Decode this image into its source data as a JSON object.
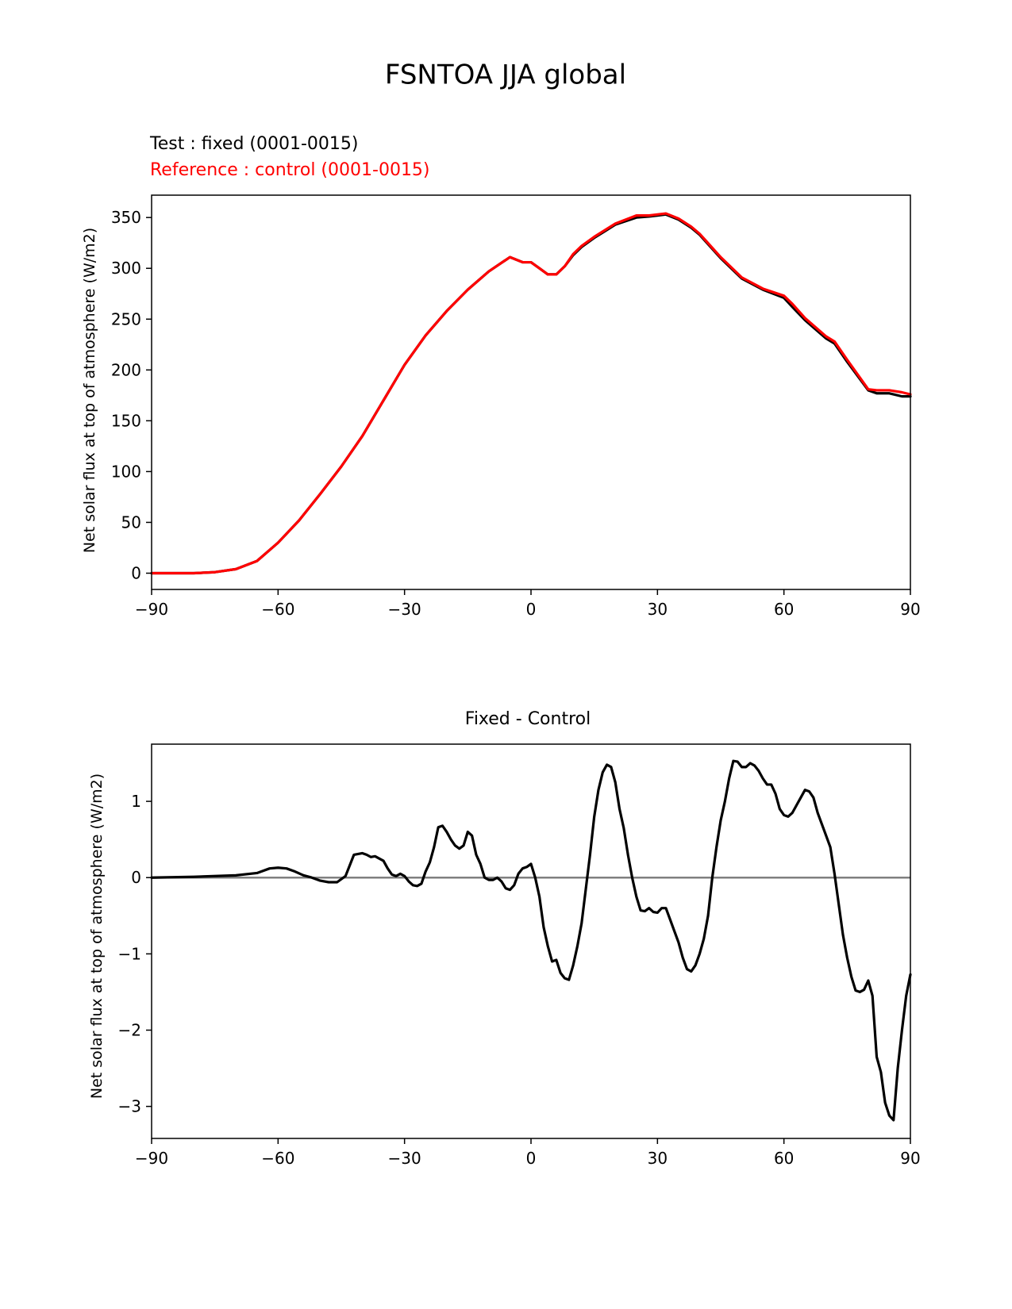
{
  "figure_title": "FSNTOA JJA global",
  "chart_data": [
    {
      "type": "line",
      "test_label": "Test : fixed (0001-0015)",
      "reference_label": "Reference : control (0001-0015)",
      "xlabel": "",
      "ylabel": "Net solar flux at top of atmosphere (W/m2)",
      "xlim": [
        -90,
        90
      ],
      "ylim": [
        -16,
        372
      ],
      "xticks": [
        -90,
        -60,
        -30,
        0,
        30,
        60,
        90
      ],
      "xtick_labels": [
        "−90",
        "−60",
        "−30",
        "0",
        "30",
        "60",
        "90"
      ],
      "yticks": [
        0,
        50,
        100,
        150,
        200,
        250,
        300,
        350
      ],
      "ytick_labels": [
        "0",
        "50",
        "100",
        "150",
        "200",
        "250",
        "300",
        "350"
      ],
      "colors": {
        "test": "#000000",
        "reference": "#ff0000"
      },
      "series": [
        {
          "name": "test",
          "x": [
            -90,
            -80,
            -75,
            -70,
            -65,
            -60,
            -55,
            -50,
            -45,
            -40,
            -35,
            -30,
            -25,
            -20,
            -15,
            -10,
            -5,
            -2,
            0,
            2,
            4,
            6,
            8,
            10,
            12,
            15,
            20,
            25,
            28,
            30,
            32,
            35,
            38,
            40,
            45,
            50,
            55,
            60,
            62,
            65,
            70,
            72,
            75,
            80,
            82,
            85,
            88,
            90
          ],
          "y": [
            0,
            0,
            1,
            4,
            12,
            30,
            52,
            78,
            105,
            135,
            170,
            205,
            234,
            258,
            279,
            297,
            311,
            306,
            306,
            300,
            294,
            294,
            302,
            313,
            321,
            330,
            343,
            350,
            351,
            352,
            353,
            348,
            340,
            333,
            310,
            290,
            279,
            271,
            262,
            249,
            231,
            226,
            208,
            180,
            177,
            177,
            174,
            174
          ]
        },
        {
          "name": "reference",
          "x": [
            -90,
            -80,
            -75,
            -70,
            -65,
            -60,
            -55,
            -50,
            -45,
            -40,
            -35,
            -30,
            -25,
            -20,
            -15,
            -10,
            -5,
            -2,
            0,
            2,
            4,
            6,
            8,
            10,
            12,
            15,
            20,
            25,
            28,
            30,
            32,
            35,
            38,
            40,
            45,
            50,
            55,
            60,
            62,
            65,
            70,
            72,
            75,
            80,
            82,
            85,
            88,
            90
          ],
          "y": [
            0,
            0,
            1,
            4,
            12,
            30,
            52,
            78,
            105,
            135,
            170,
            205,
            234,
            258,
            279,
            297,
            311,
            306,
            306,
            300,
            294,
            294,
            302,
            314,
            322,
            331,
            344,
            352,
            352,
            353,
            354,
            349,
            341,
            334,
            311,
            291,
            280,
            273,
            265,
            251,
            233,
            228,
            210,
            181,
            180,
            180,
            178,
            176
          ]
        }
      ]
    },
    {
      "type": "line",
      "title": "Fixed - Control",
      "xlabel": "",
      "ylabel": "Net solar flux at top of atmosphere (W/m2)",
      "xlim": [
        -90,
        90
      ],
      "ylim": [
        -3.42,
        1.75
      ],
      "xticks": [
        -90,
        -60,
        -30,
        0,
        30,
        60,
        90
      ],
      "xtick_labels": [
        "−90",
        "−60",
        "−30",
        "0",
        "30",
        "60",
        "90"
      ],
      "yticks": [
        -3,
        -2,
        -1,
        0,
        1
      ],
      "ytick_labels": [
        "−3",
        "−2",
        "−1",
        "0",
        "1"
      ],
      "zero_line": 0,
      "colors": {
        "difference": "#000000",
        "zero_line": "#808080"
      },
      "series": [
        {
          "name": "difference",
          "x": [
            -90,
            -80,
            -70,
            -65,
            -62,
            -60,
            -58,
            -56,
            -54,
            -52,
            -50,
            -48,
            -46,
            -44,
            -42,
            -40,
            -39,
            -38,
            -37,
            -36,
            -35,
            -34,
            -33,
            -32,
            -31,
            -30,
            -29,
            -28,
            -27,
            -26,
            -25,
            -24,
            -23,
            -22,
            -21,
            -20,
            -19,
            -18,
            -17,
            -16,
            -15,
            -14,
            -13,
            -12,
            -11,
            -10,
            -9,
            -8,
            -7,
            -6,
            -5,
            -4,
            -3,
            -2,
            -1,
            0,
            1,
            2,
            3,
            4,
            5,
            6,
            7,
            8,
            9,
            10,
            11,
            12,
            13,
            14,
            15,
            16,
            17,
            18,
            19,
            20,
            21,
            22,
            23,
            24,
            25,
            26,
            27,
            28,
            29,
            30,
            31,
            32,
            33,
            34,
            35,
            36,
            37,
            38,
            39,
            40,
            41,
            42,
            43,
            44,
            45,
            46,
            47,
            48,
            49,
            50,
            51,
            52,
            53,
            54,
            55,
            56,
            57,
            58,
            59,
            60,
            61,
            62,
            63,
            64,
            65,
            66,
            67,
            68,
            69,
            70,
            71,
            72,
            73,
            74,
            75,
            76,
            77,
            78,
            79,
            80,
            81,
            82,
            83,
            84,
            85,
            86,
            87,
            88,
            89,
            90
          ],
          "y": [
            0,
            0.01,
            0.03,
            0.06,
            0.12,
            0.13,
            0.12,
            0.08,
            0.03,
            0.0,
            -0.04,
            -0.06,
            -0.06,
            0.02,
            0.3,
            0.32,
            0.3,
            0.27,
            0.28,
            0.25,
            0.22,
            0.12,
            0.04,
            0.02,
            0.05,
            0.02,
            -0.05,
            -0.1,
            -0.11,
            -0.08,
            0.08,
            0.2,
            0.4,
            0.66,
            0.68,
            0.6,
            0.5,
            0.42,
            0.38,
            0.42,
            0.6,
            0.55,
            0.3,
            0.18,
            0.0,
            -0.03,
            -0.03,
            0.0,
            -0.05,
            -0.14,
            -0.16,
            -0.1,
            0.05,
            0.12,
            0.14,
            0.18,
            0.0,
            -0.25,
            -0.65,
            -0.9,
            -1.1,
            -1.08,
            -1.25,
            -1.32,
            -1.34,
            -1.15,
            -0.9,
            -0.6,
            -0.15,
            0.3,
            0.8,
            1.15,
            1.38,
            1.48,
            1.45,
            1.25,
            0.9,
            0.65,
            0.3,
            0.0,
            -0.25,
            -0.43,
            -0.44,
            -0.4,
            -0.45,
            -0.46,
            -0.4,
            -0.4,
            -0.55,
            -0.7,
            -0.85,
            -1.05,
            -1.2,
            -1.23,
            -1.15,
            -1.0,
            -0.8,
            -0.5,
            0.0,
            0.4,
            0.75,
            1.0,
            1.3,
            1.53,
            1.52,
            1.45,
            1.45,
            1.5,
            1.47,
            1.4,
            1.3,
            1.22,
            1.22,
            1.1,
            0.9,
            0.82,
            0.8,
            0.85,
            0.95,
            1.05,
            1.15,
            1.13,
            1.05,
            0.85,
            0.7,
            0.55,
            0.4,
            0.05,
            -0.35,
            -0.75,
            -1.05,
            -1.3,
            -1.48,
            -1.5,
            -1.47,
            -1.35,
            -1.55,
            -2.35,
            -2.55,
            -2.95,
            -3.12,
            -3.18,
            -2.5,
            -2.0,
            -1.55,
            -1.27
          ]
        }
      ]
    }
  ]
}
